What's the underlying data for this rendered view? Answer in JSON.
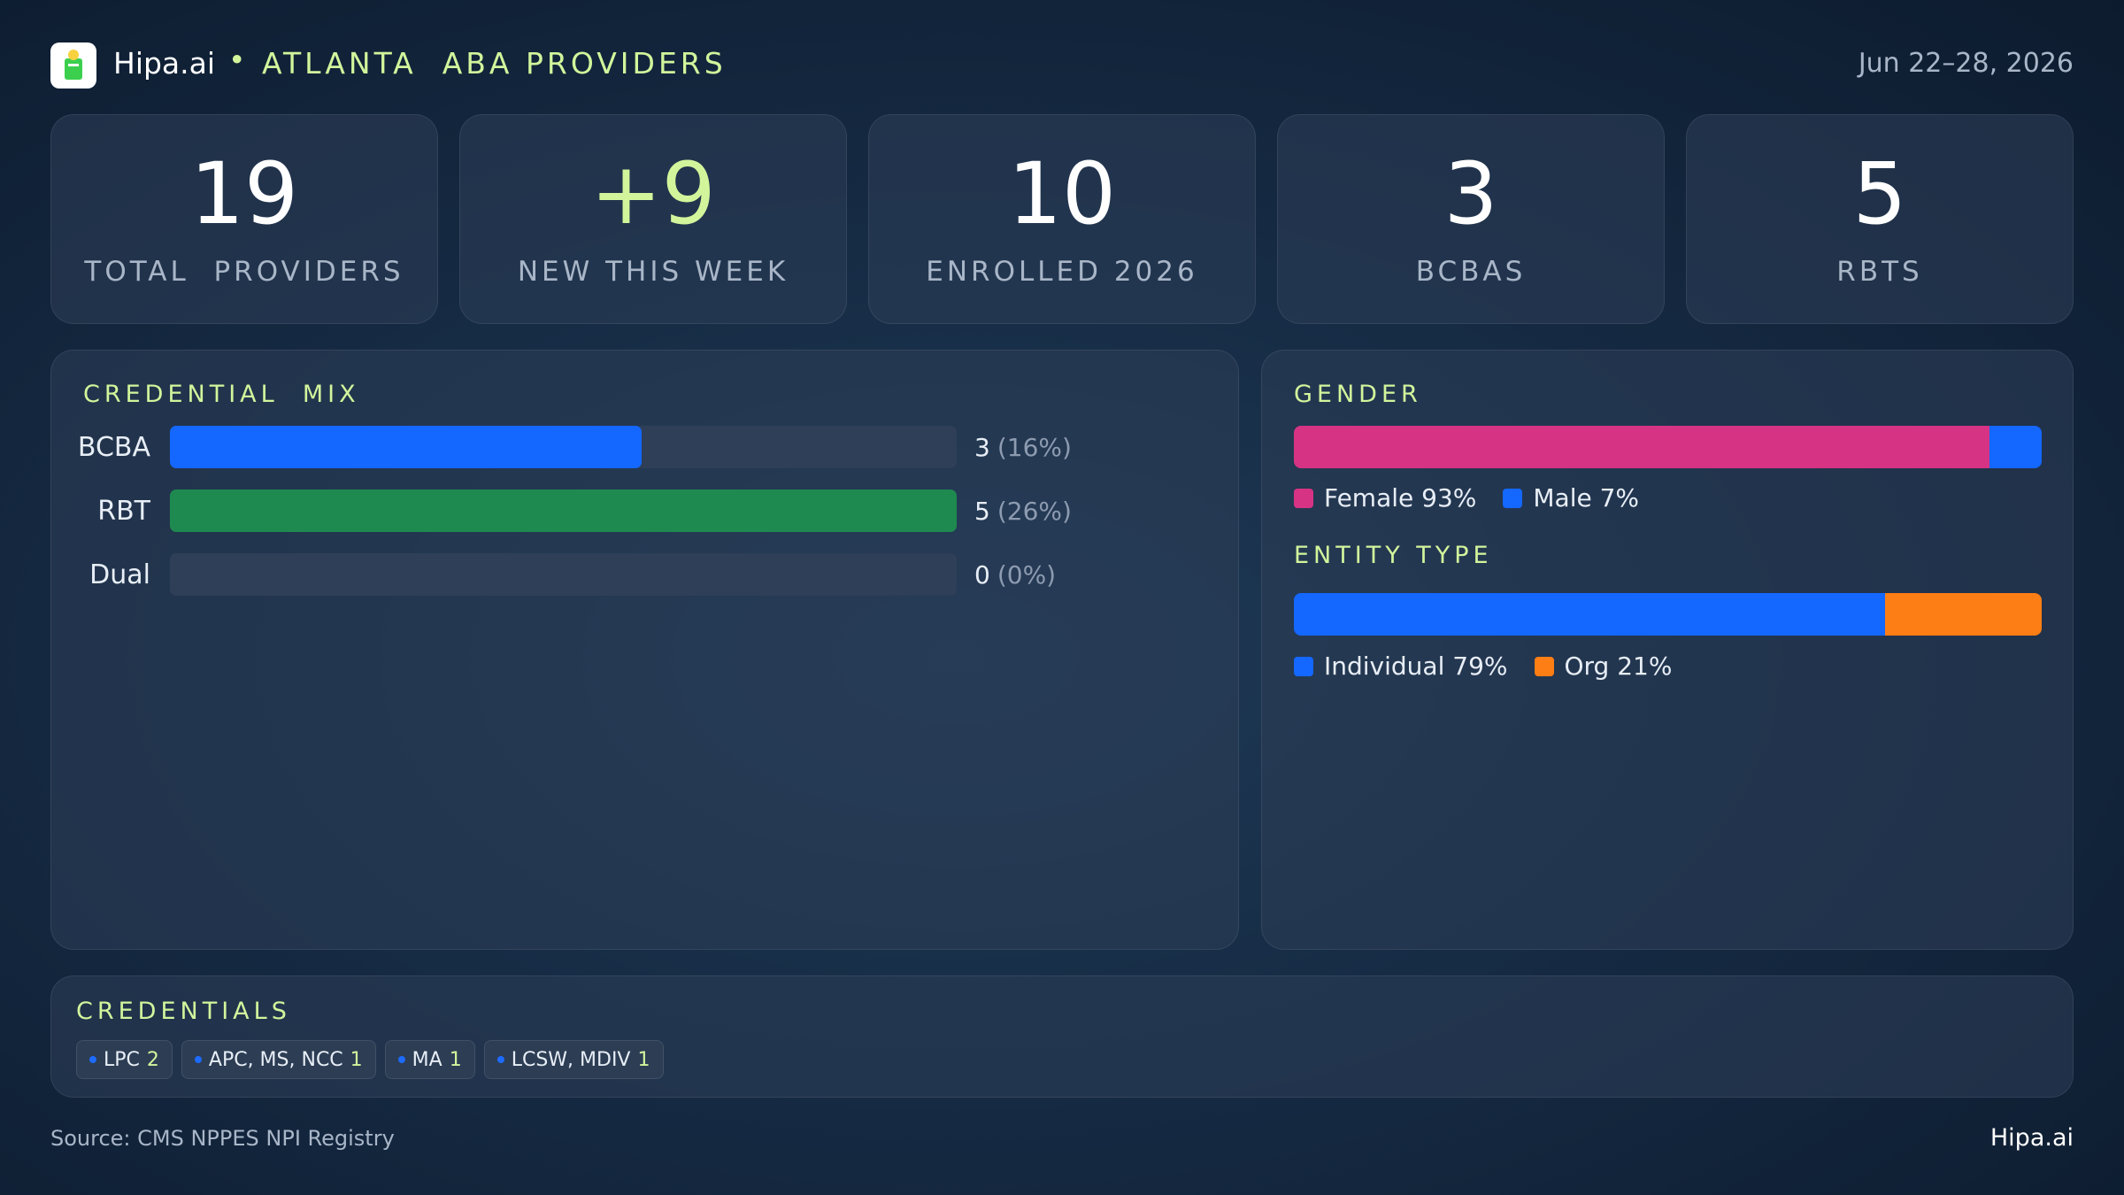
{
  "header": {
    "brand": "Hipa.ai",
    "title": "ATLANTA  ABA PROVIDERS",
    "date": "Jun 22–28, 2026"
  },
  "kpis": [
    {
      "value": "19",
      "label": "TOTAL  PROVIDERS"
    },
    {
      "value": "+9",
      "label": "NEW THIS WEEK"
    },
    {
      "value": "10",
      "label": "ENROLLED 2026"
    },
    {
      "value": "3",
      "label": "BCBAS"
    },
    {
      "value": "5",
      "label": "RBTS"
    }
  ],
  "credential_mix": {
    "title": "CREDENTIAL  MIX",
    "rows": [
      {
        "label": "BCBA",
        "count": 3,
        "percent_label": "(16%)",
        "color": "#1467ff"
      },
      {
        "label": "RBT",
        "count": 5,
        "percent_label": "(26%)",
        "color": "#1e8a50"
      },
      {
        "label": "Dual",
        "count": 0,
        "percent_label": "(0%)",
        "color": "#1467ff"
      }
    ]
  },
  "gender": {
    "title": "GENDER",
    "segments": [
      {
        "label": "Female 93%",
        "value": 93,
        "color": "#d63384"
      },
      {
        "label": "Male 7%",
        "value": 7,
        "color": "#1467ff"
      }
    ]
  },
  "entity_type": {
    "title": "ENTITY TYPE",
    "segments": [
      {
        "label": "Individual 79%",
        "value": 79,
        "color": "#1467ff"
      },
      {
        "label": "Org 21%",
        "value": 21,
        "color": "#fd7e14"
      }
    ]
  },
  "credentials": {
    "title": "CREDENTIALS",
    "chips": [
      {
        "name": "LPC",
        "count": 2
      },
      {
        "name": "APC, MS, NCC",
        "count": 1
      },
      {
        "name": "MA",
        "count": 1
      },
      {
        "name": "LCSW, MDIV",
        "count": 1
      }
    ]
  },
  "footer": {
    "source": "Source: CMS NPPES NPI Registry",
    "brand": "Hipa.ai"
  }
}
